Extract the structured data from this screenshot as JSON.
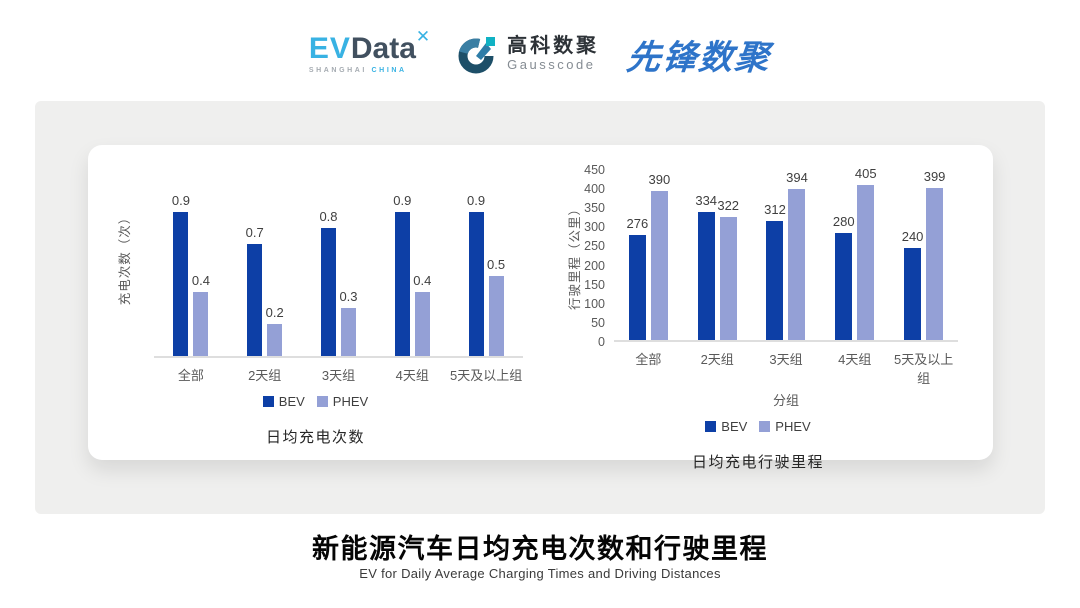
{
  "header": {
    "evdata_logo": {
      "part_ev": "EV",
      "part_data": "Data",
      "sup_mark": "✕",
      "sub_shanghai": "SHANGHAI",
      "sub_china": "CHINA"
    },
    "gausscode_logo": {
      "name_cn": "高科数聚",
      "name_en": "Gausscode"
    },
    "xianfeng_logo": {
      "text": "先锋数聚"
    }
  },
  "chart_data": [
    {
      "type": "bar",
      "title": "日均充电次数",
      "xlabel": "",
      "ylabel": "充电次数（次）",
      "categories": [
        "全部",
        "2天组",
        "3天组",
        "4天组",
        "5天及以上组"
      ],
      "series": [
        {
          "name": "BEV",
          "color": "#0d3fa6",
          "values": [
            0.9,
            0.7,
            0.8,
            0.9,
            0.9
          ]
        },
        {
          "name": "PHEV",
          "color": "#94a0d6",
          "values": [
            0.4,
            0.2,
            0.3,
            0.4,
            0.5
          ]
        }
      ],
      "ylim": [
        0,
        1.0
      ],
      "yticks": [],
      "grid": false,
      "legend_position": "bottom"
    },
    {
      "type": "bar",
      "title": "日均充电行驶里程",
      "xlabel": "分组",
      "ylabel": "行驶里程（公里）",
      "categories": [
        "全部",
        "2天组",
        "3天组",
        "4天组",
        "5天及以上组"
      ],
      "series": [
        {
          "name": "BEV",
          "color": "#0d3fa6",
          "values": [
            276,
            334,
            312,
            280,
            240
          ]
        },
        {
          "name": "PHEV",
          "color": "#94a0d6",
          "values": [
            390,
            322,
            394,
            405,
            399
          ]
        }
      ],
      "ylim": [
        0,
        450
      ],
      "yticks": [
        0,
        50,
        100,
        150,
        200,
        250,
        300,
        350,
        400,
        450
      ],
      "grid": false,
      "legend_position": "bottom"
    }
  ],
  "footer": {
    "title_cn": "新能源汽车日均充电次数和行驶里程",
    "subtitle_en": "EV for Daily Average Charging Times and Driving Distances"
  },
  "colors": {
    "bev": "#0d3fa6",
    "phev": "#94a0d6",
    "panel_bg": "#efefee",
    "card_bg": "#ffffff"
  }
}
